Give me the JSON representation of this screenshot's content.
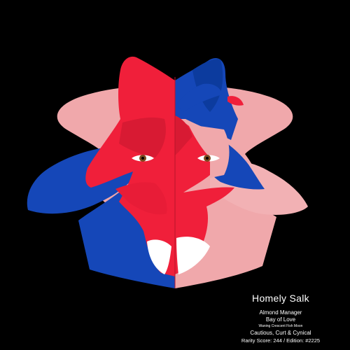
{
  "colors": {
    "background": "#000000",
    "pink": "#F0A8AB",
    "red": "#F01F3A",
    "dark_red": "#D81A33",
    "blue": "#1547B8",
    "dark_blue": "#0C3B9E",
    "white": "#FFFFFF"
  },
  "icons": [
    "face-artwork-icon"
  ],
  "caption": {
    "name": "Homely Salk",
    "title": "Almond Manager",
    "place": "Bay of Love",
    "moon": "Waning Crescent Fish Moon",
    "traits": "Cautious, Curt & Cynical",
    "rarity": "Rarity Score: 244 / Edition: #2225"
  }
}
